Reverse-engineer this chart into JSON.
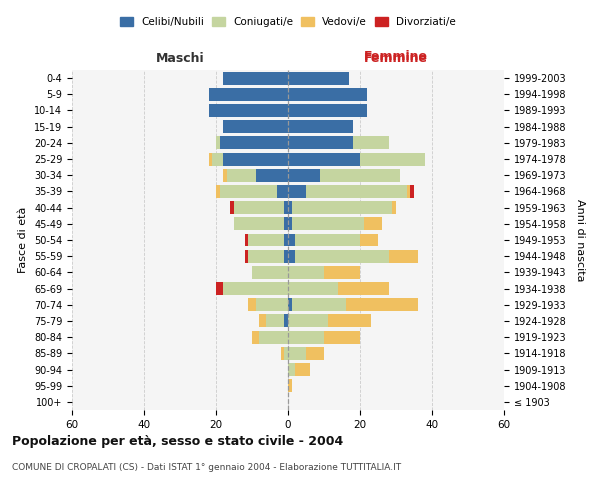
{
  "age_groups": [
    "100+",
    "95-99",
    "90-94",
    "85-89",
    "80-84",
    "75-79",
    "70-74",
    "65-69",
    "60-64",
    "55-59",
    "50-54",
    "45-49",
    "40-44",
    "35-39",
    "30-34",
    "25-29",
    "20-24",
    "15-19",
    "10-14",
    "5-9",
    "0-4"
  ],
  "birth_years": [
    "≤ 1903",
    "1904-1908",
    "1909-1913",
    "1914-1918",
    "1919-1923",
    "1924-1928",
    "1929-1933",
    "1934-1938",
    "1939-1943",
    "1944-1948",
    "1949-1953",
    "1954-1958",
    "1959-1963",
    "1964-1968",
    "1969-1973",
    "1974-1978",
    "1979-1983",
    "1984-1988",
    "1989-1993",
    "1994-1998",
    "1999-2003"
  ],
  "colors": {
    "celibi": "#3a6ea5",
    "coniugati": "#c5d5a0",
    "vedovi": "#f0c060",
    "divorziati": "#cc2222"
  },
  "maschi": {
    "celibi": [
      0,
      0,
      0,
      0,
      0,
      1,
      0,
      0,
      0,
      1,
      1,
      1,
      1,
      3,
      9,
      18,
      19,
      18,
      22,
      22,
      18
    ],
    "coniugati": [
      0,
      0,
      0,
      1,
      8,
      5,
      9,
      18,
      10,
      10,
      10,
      14,
      14,
      16,
      8,
      3,
      1,
      0,
      0,
      0,
      0
    ],
    "vedovi": [
      0,
      0,
      0,
      1,
      2,
      2,
      2,
      0,
      0,
      0,
      0,
      0,
      0,
      1,
      1,
      1,
      0,
      0,
      0,
      0,
      0
    ],
    "divorziati": [
      0,
      0,
      0,
      0,
      0,
      0,
      0,
      2,
      0,
      1,
      1,
      0,
      1,
      0,
      0,
      0,
      0,
      0,
      0,
      0,
      0
    ]
  },
  "femmine": {
    "celibi": [
      0,
      0,
      0,
      0,
      0,
      0,
      1,
      0,
      0,
      2,
      2,
      1,
      1,
      5,
      9,
      20,
      18,
      18,
      22,
      22,
      17
    ],
    "coniugati": [
      0,
      0,
      2,
      5,
      10,
      11,
      15,
      14,
      10,
      26,
      18,
      20,
      28,
      28,
      22,
      18,
      10,
      0,
      0,
      0,
      0
    ],
    "vedovi": [
      0,
      1,
      4,
      5,
      10,
      12,
      20,
      14,
      10,
      8,
      5,
      5,
      1,
      1,
      0,
      0,
      0,
      0,
      0,
      0,
      0
    ],
    "divorziati": [
      0,
      0,
      0,
      0,
      0,
      0,
      0,
      0,
      0,
      0,
      0,
      0,
      0,
      1,
      0,
      0,
      0,
      0,
      0,
      0,
      0
    ]
  },
  "title": "Popolazione per età, sesso e stato civile - 2004",
  "subtitle": "COMUNE DI CROPALATI (CS) - Dati ISTAT 1° gennaio 2004 - Elaborazione TUTTITALIA.IT",
  "xlabel_left": "Maschi",
  "xlabel_right": "Femmine",
  "ylabel_left": "Fasce di età",
  "ylabel_right": "Anni di nascita",
  "xlim": 60,
  "bg_color": "#f5f5f5",
  "grid_color": "#cccccc"
}
